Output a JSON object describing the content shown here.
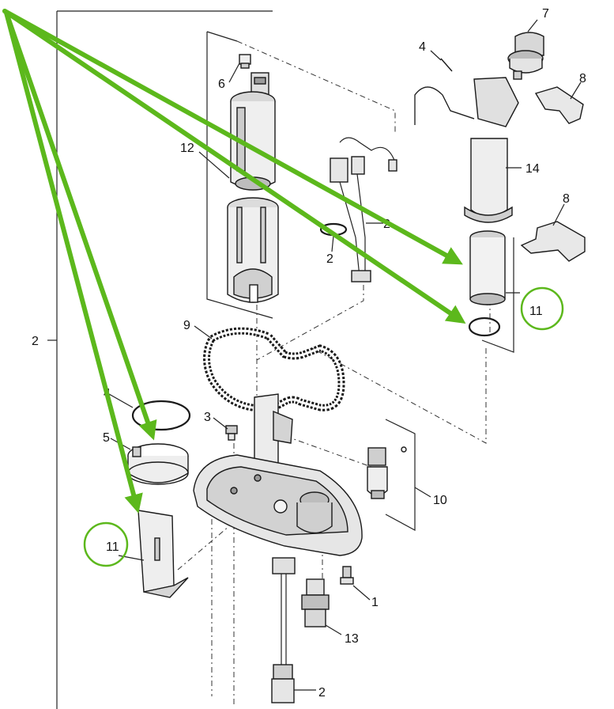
{
  "labels": {
    "l1": "1",
    "l2a": "2",
    "l2b": "2",
    "l2c": "2",
    "l2d": "2",
    "l3": "3",
    "l4a": "4",
    "l4b": "4",
    "l5": "5",
    "l6": "6",
    "l7": "7",
    "l8a": "8",
    "l8b": "8",
    "l9": "9",
    "l10": "10",
    "l11a": "11",
    "l11b": "11",
    "l12": "12",
    "l13": "13",
    "l14": "14"
  },
  "colors": {
    "annotation": "#5cb81c",
    "line": "#222222",
    "part_fill": "#f2f2f2",
    "part_shade": "#bdbdbd"
  }
}
